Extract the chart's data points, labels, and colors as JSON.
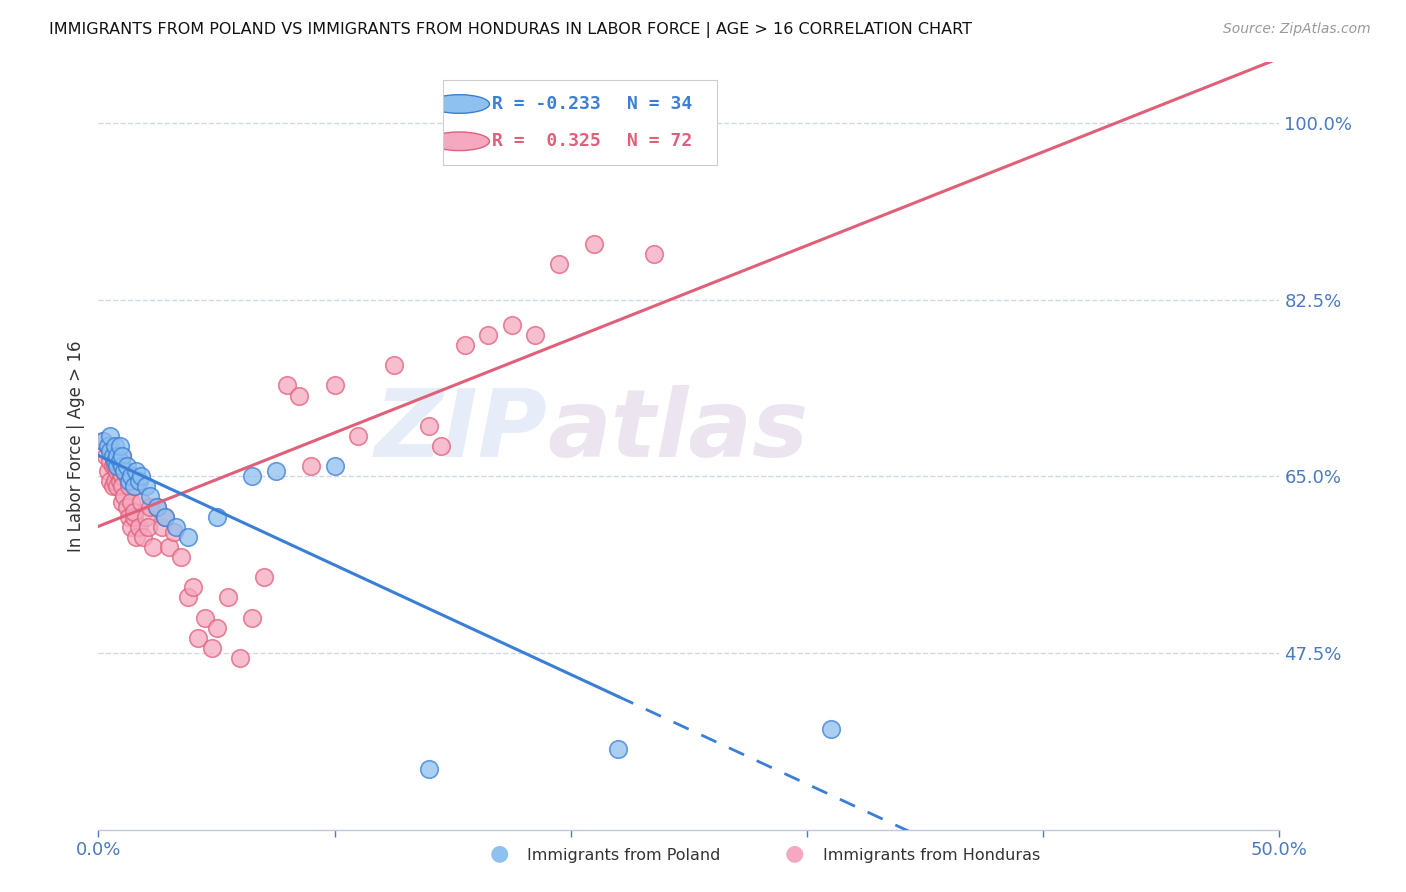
{
  "title": "IMMIGRANTS FROM POLAND VS IMMIGRANTS FROM HONDURAS IN LABOR FORCE | AGE > 16 CORRELATION CHART",
  "source": "Source: ZipAtlas.com",
  "ylabel": "In Labor Force | Age > 16",
  "xlim": [
    0.0,
    0.5
  ],
  "ylim": [
    0.3,
    1.06
  ],
  "xticks": [
    0.0,
    0.1,
    0.2,
    0.3,
    0.4,
    0.5
  ],
  "xticklabels": [
    "0.0%",
    "",
    "",
    "",
    "",
    "50.0%"
  ],
  "yticks": [
    0.475,
    0.65,
    0.825,
    1.0
  ],
  "yticklabels": [
    "47.5%",
    "65.0%",
    "82.5%",
    "100.0%"
  ],
  "poland_color": "#8ec0f0",
  "honduras_color": "#f5a8c0",
  "trend_poland_color": "#3a7fd5",
  "trend_honduras_color": "#e0607a",
  "legend_R_poland": "R = -0.233",
  "legend_N_poland": "N = 34",
  "legend_R_honduras": "R =  0.325",
  "legend_N_honduras": "N = 72",
  "poland_x": [
    0.002,
    0.004,
    0.005,
    0.005,
    0.006,
    0.007,
    0.007,
    0.008,
    0.008,
    0.009,
    0.009,
    0.01,
    0.01,
    0.011,
    0.012,
    0.013,
    0.014,
    0.015,
    0.016,
    0.017,
    0.018,
    0.02,
    0.022,
    0.025,
    0.028,
    0.033,
    0.038,
    0.05,
    0.065,
    0.075,
    0.1,
    0.14,
    0.22,
    0.31
  ],
  "poland_y": [
    0.685,
    0.68,
    0.675,
    0.69,
    0.67,
    0.665,
    0.68,
    0.66,
    0.67,
    0.665,
    0.68,
    0.66,
    0.67,
    0.655,
    0.66,
    0.645,
    0.65,
    0.64,
    0.655,
    0.645,
    0.65,
    0.64,
    0.63,
    0.62,
    0.61,
    0.6,
    0.59,
    0.61,
    0.65,
    0.655,
    0.66,
    0.36,
    0.38,
    0.4
  ],
  "honduras_x": [
    0.002,
    0.003,
    0.004,
    0.004,
    0.005,
    0.005,
    0.005,
    0.006,
    0.006,
    0.007,
    0.007,
    0.007,
    0.008,
    0.008,
    0.008,
    0.009,
    0.009,
    0.009,
    0.01,
    0.01,
    0.01,
    0.01,
    0.011,
    0.011,
    0.012,
    0.012,
    0.013,
    0.013,
    0.014,
    0.014,
    0.015,
    0.015,
    0.016,
    0.016,
    0.017,
    0.018,
    0.019,
    0.02,
    0.021,
    0.022,
    0.023,
    0.025,
    0.027,
    0.028,
    0.03,
    0.032,
    0.035,
    0.038,
    0.04,
    0.042,
    0.045,
    0.048,
    0.05,
    0.055,
    0.06,
    0.065,
    0.07,
    0.08,
    0.085,
    0.09,
    0.1,
    0.11,
    0.125,
    0.14,
    0.145,
    0.155,
    0.165,
    0.175,
    0.185,
    0.195,
    0.21,
    0.235
  ],
  "honduras_y": [
    0.685,
    0.67,
    0.68,
    0.655,
    0.665,
    0.68,
    0.645,
    0.66,
    0.64,
    0.67,
    0.66,
    0.645,
    0.665,
    0.64,
    0.655,
    0.66,
    0.645,
    0.655,
    0.67,
    0.65,
    0.64,
    0.625,
    0.655,
    0.63,
    0.65,
    0.62,
    0.64,
    0.61,
    0.625,
    0.6,
    0.61,
    0.615,
    0.64,
    0.59,
    0.6,
    0.625,
    0.59,
    0.61,
    0.6,
    0.62,
    0.58,
    0.62,
    0.6,
    0.61,
    0.58,
    0.595,
    0.57,
    0.53,
    0.54,
    0.49,
    0.51,
    0.48,
    0.5,
    0.53,
    0.47,
    0.51,
    0.55,
    0.74,
    0.73,
    0.66,
    0.74,
    0.69,
    0.76,
    0.7,
    0.68,
    0.78,
    0.79,
    0.8,
    0.79,
    0.86,
    0.88,
    0.87
  ],
  "background_color": "#ffffff",
  "grid_color": "#d0d8e8",
  "watermark_zip": "ZIP",
  "watermark_atlas": "atlas",
  "trend_poland_solid_end": 0.22,
  "trend_poland_dash_end": 0.5
}
